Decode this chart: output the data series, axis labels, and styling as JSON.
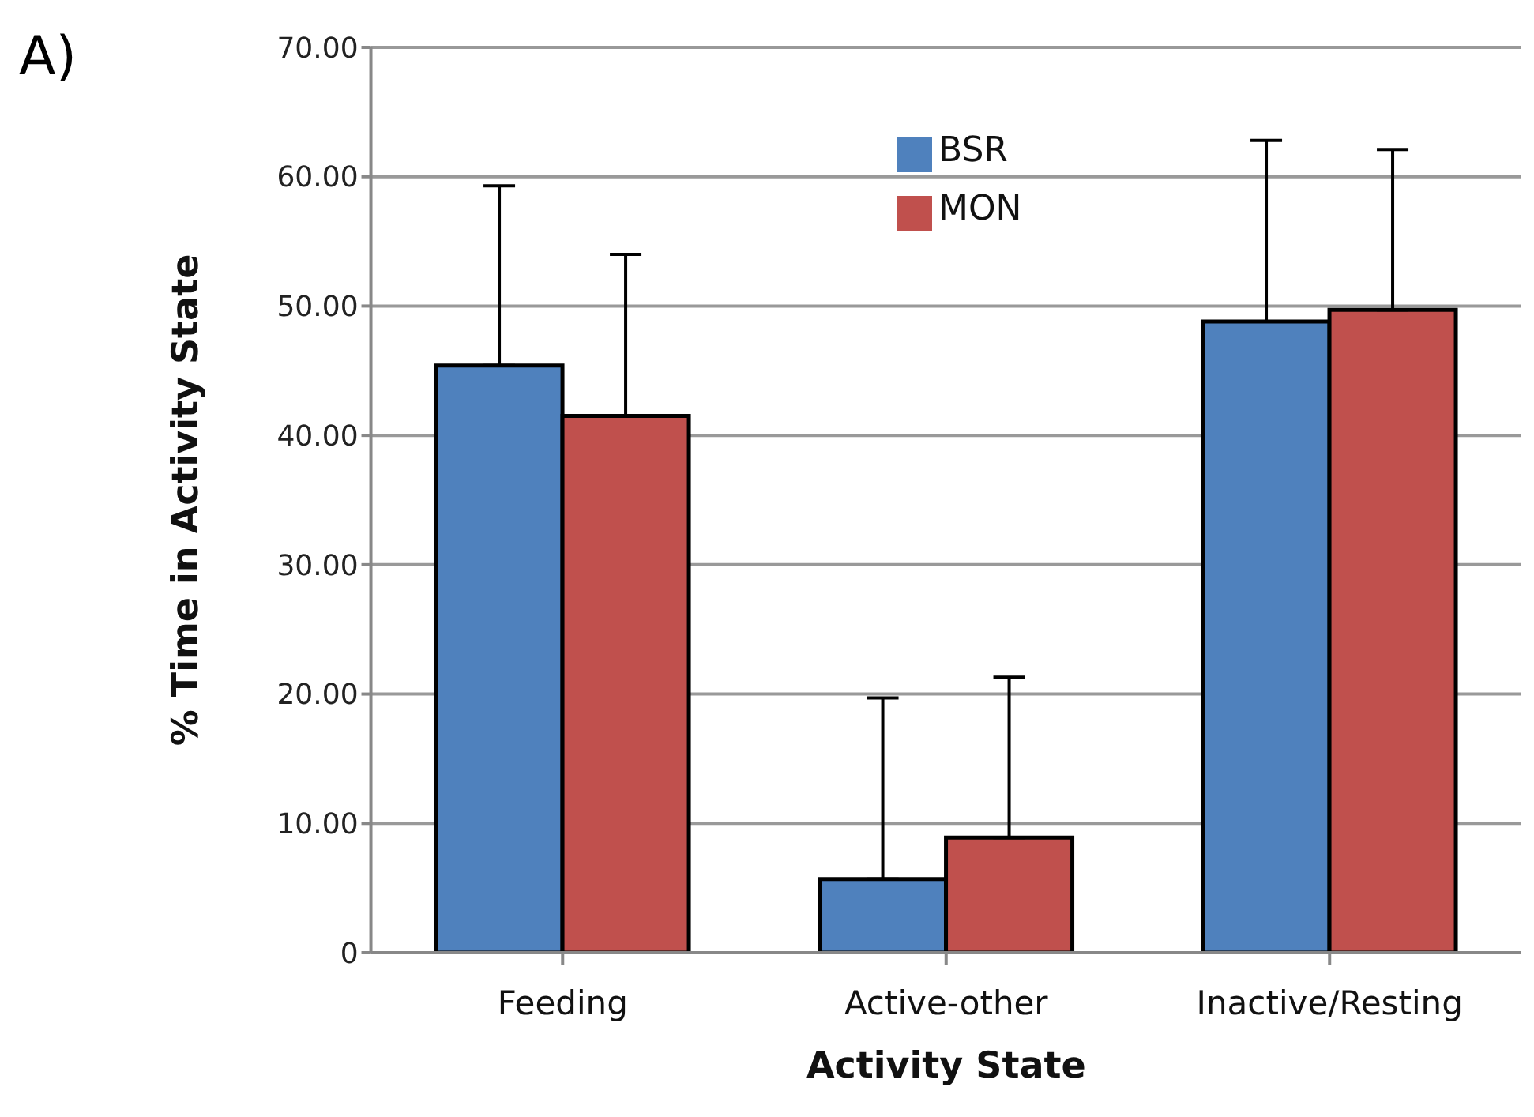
{
  "chart_data": {
    "type": "bar",
    "xlabel": "Activity State",
    "ylabel": "% Time in Activity State",
    "annotations": [
      "A)"
    ],
    "categories": [
      "Feeding",
      "Active-other",
      "Inactive/Resting"
    ],
    "series": [
      {
        "name": "BSR",
        "color": "#4f81bd",
        "values": [
          45.4,
          5.7,
          48.8
        ],
        "errors": [
          [
            45.4,
            59.3
          ],
          [
            5.7,
            19.7
          ],
          [
            48.8,
            62.8
          ]
        ]
      },
      {
        "name": "MON",
        "color": "#c0504d",
        "values": [
          41.5,
          8.9,
          49.7
        ],
        "errors": [
          [
            41.5,
            54.0
          ],
          [
            8.9,
            21.3
          ],
          [
            49.7,
            62.1
          ]
        ]
      }
    ],
    "ylim": [
      0,
      70
    ],
    "yticks": [
      {
        "value": 0,
        "label": "0"
      },
      {
        "value": 10,
        "label": "10.00"
      },
      {
        "value": 20,
        "label": "20.00"
      },
      {
        "value": 30,
        "label": "30.00"
      },
      {
        "value": 40,
        "label": "40.00"
      },
      {
        "value": 50,
        "label": "50.00"
      },
      {
        "value": 60,
        "label": "60.00"
      },
      {
        "value": 70,
        "label": "70.00"
      }
    ],
    "grid": "y",
    "legend": "top"
  }
}
